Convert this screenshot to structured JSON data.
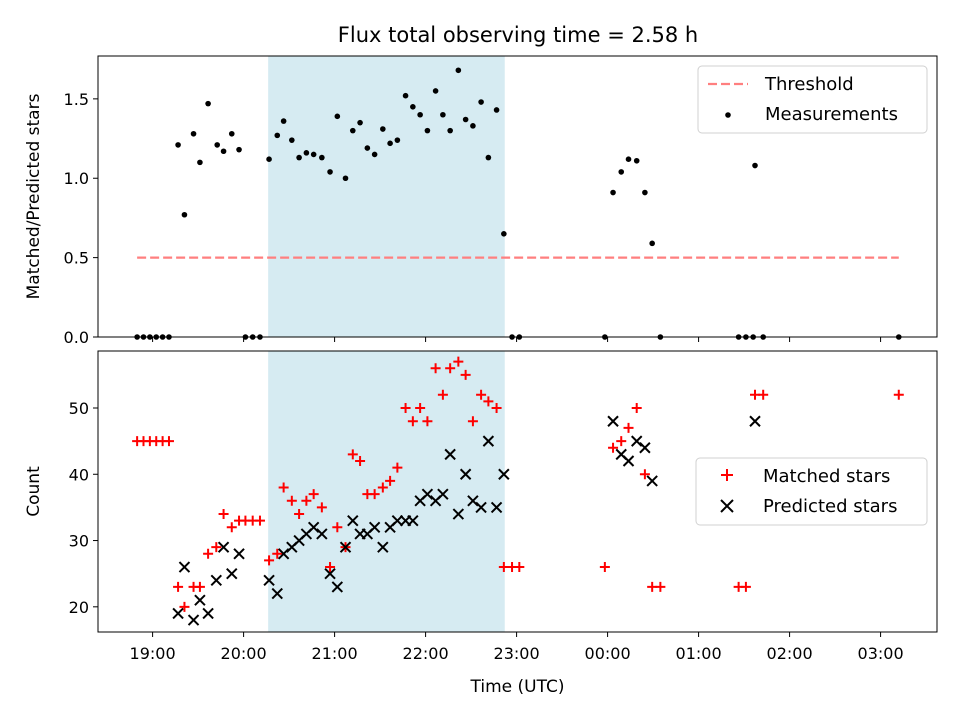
{
  "title": "Flux total observing time = 2.58 h",
  "colors": {
    "threshold": "#ff7f7f",
    "measurement": "#000000",
    "matched": "#ff0000",
    "predicted": "#000000",
    "shade": "#add8e6"
  },
  "chart_data": [
    {
      "type": "scatter",
      "panel": "top",
      "ylabel": "Matched/Predicted stars",
      "xlim": [
        18.4,
        27.62
      ],
      "ylim": [
        0,
        1.77
      ],
      "yticks": [
        0.0,
        0.5,
        1.0,
        1.5
      ],
      "ytick_labels": [
        "0.0",
        "0.5",
        "1.0",
        "1.5"
      ],
      "shaded_span": [
        20.27,
        22.87
      ],
      "threshold": {
        "name": "Threshold",
        "value": 0.5,
        "x_range": [
          18.83,
          27.2
        ]
      },
      "legend": {
        "location": "top-right",
        "entries": [
          "Threshold",
          "Measurements"
        ]
      },
      "series": [
        {
          "name": "Measurements",
          "points": [
            [
              18.83,
              0
            ],
            [
              18.9,
              0
            ],
            [
              18.97,
              0
            ],
            [
              19.04,
              0
            ],
            [
              19.11,
              0
            ],
            [
              19.18,
              0
            ],
            [
              19.28,
              1.21
            ],
            [
              19.35,
              0.77
            ],
            [
              19.45,
              1.28
            ],
            [
              19.52,
              1.1
            ],
            [
              19.61,
              1.47
            ],
            [
              19.71,
              1.21
            ],
            [
              19.78,
              1.17
            ],
            [
              19.87,
              1.28
            ],
            [
              19.95,
              1.18
            ],
            [
              20.02,
              0
            ],
            [
              20.1,
              0
            ],
            [
              20.18,
              0
            ],
            [
              20.28,
              1.12
            ],
            [
              20.37,
              1.27
            ],
            [
              20.44,
              1.36
            ],
            [
              20.53,
              1.24
            ],
            [
              20.61,
              1.13
            ],
            [
              20.69,
              1.16
            ],
            [
              20.77,
              1.15
            ],
            [
              20.86,
              1.13
            ],
            [
              20.95,
              1.04
            ],
            [
              21.03,
              1.39
            ],
            [
              21.12,
              1.0
            ],
            [
              21.2,
              1.3
            ],
            [
              21.28,
              1.35
            ],
            [
              21.36,
              1.19
            ],
            [
              21.44,
              1.15
            ],
            [
              21.53,
              1.31
            ],
            [
              21.61,
              1.22
            ],
            [
              21.69,
              1.24
            ],
            [
              21.78,
              1.52
            ],
            [
              21.86,
              1.45
            ],
            [
              21.94,
              1.4
            ],
            [
              22.02,
              1.3
            ],
            [
              22.11,
              1.55
            ],
            [
              22.19,
              1.4
            ],
            [
              22.27,
              1.3
            ],
            [
              22.36,
              1.68
            ],
            [
              22.44,
              1.37
            ],
            [
              22.52,
              1.33
            ],
            [
              22.61,
              1.48
            ],
            [
              22.69,
              1.13
            ],
            [
              22.78,
              1.43
            ],
            [
              22.86,
              0.65
            ],
            [
              22.95,
              0
            ],
            [
              23.03,
              0
            ],
            [
              23.97,
              0
            ],
            [
              24.06,
              0.91
            ],
            [
              24.15,
              1.04
            ],
            [
              24.23,
              1.12
            ],
            [
              24.32,
              1.11
            ],
            [
              24.41,
              0.91
            ],
            [
              24.49,
              0.59
            ],
            [
              24.58,
              0
            ],
            [
              25.44,
              0
            ],
            [
              25.52,
              0
            ],
            [
              25.6,
              0
            ],
            [
              25.62,
              1.08
            ],
            [
              25.71,
              0
            ],
            [
              27.2,
              0
            ]
          ]
        }
      ]
    },
    {
      "type": "scatter",
      "panel": "bottom",
      "ylabel": "Count",
      "xlabel": "Time (UTC)",
      "xlim": [
        18.4,
        27.62
      ],
      "ylim": [
        16.2,
        58.6
      ],
      "yticks": [
        20,
        30,
        40,
        50
      ],
      "ytick_labels": [
        "20",
        "30",
        "40",
        "50"
      ],
      "xticks": [
        19,
        20,
        21,
        22,
        23,
        24,
        25,
        26,
        27
      ],
      "xtick_labels": [
        "19:00",
        "20:00",
        "21:00",
        "22:00",
        "23:00",
        "00:00",
        "01:00",
        "02:00",
        "03:00"
      ],
      "shaded_span": [
        20.27,
        22.87
      ],
      "legend": {
        "location": "center-right",
        "entries": [
          "Matched stars",
          "Predicted stars"
        ]
      },
      "series": [
        {
          "name": "Matched stars",
          "marker": "plus",
          "points": [
            [
              18.83,
              45
            ],
            [
              18.9,
              45
            ],
            [
              18.97,
              45
            ],
            [
              19.04,
              45
            ],
            [
              19.11,
              45
            ],
            [
              19.18,
              45
            ],
            [
              19.28,
              23
            ],
            [
              19.35,
              20
            ],
            [
              19.45,
              23
            ],
            [
              19.52,
              23
            ],
            [
              19.61,
              28
            ],
            [
              19.7,
              29
            ],
            [
              19.78,
              34
            ],
            [
              19.87,
              32
            ],
            [
              19.95,
              33
            ],
            [
              20.02,
              33
            ],
            [
              20.1,
              33
            ],
            [
              20.18,
              33
            ],
            [
              20.28,
              27
            ],
            [
              20.37,
              28
            ],
            [
              20.44,
              38
            ],
            [
              20.53,
              36
            ],
            [
              20.61,
              34
            ],
            [
              20.69,
              36
            ],
            [
              20.77,
              37
            ],
            [
              20.86,
              35
            ],
            [
              20.95,
              26
            ],
            [
              21.03,
              32
            ],
            [
              21.12,
              29
            ],
            [
              21.2,
              43
            ],
            [
              21.28,
              42
            ],
            [
              21.36,
              37
            ],
            [
              21.44,
              37
            ],
            [
              21.53,
              38
            ],
            [
              21.61,
              39
            ],
            [
              21.69,
              41
            ],
            [
              21.78,
              50
            ],
            [
              21.86,
              48
            ],
            [
              21.94,
              50
            ],
            [
              22.02,
              48
            ],
            [
              22.11,
              56
            ],
            [
              22.19,
              52
            ],
            [
              22.27,
              56
            ],
            [
              22.36,
              57
            ],
            [
              22.44,
              55
            ],
            [
              22.52,
              48
            ],
            [
              22.61,
              52
            ],
            [
              22.69,
              51
            ],
            [
              22.78,
              50
            ],
            [
              22.86,
              26
            ],
            [
              22.95,
              26
            ],
            [
              23.03,
              26
            ],
            [
              23.97,
              26
            ],
            [
              24.06,
              44
            ],
            [
              24.15,
              45
            ],
            [
              24.23,
              47
            ],
            [
              24.32,
              50
            ],
            [
              24.41,
              40
            ],
            [
              24.49,
              23
            ],
            [
              24.58,
              23
            ],
            [
              25.44,
              23
            ],
            [
              25.52,
              23
            ],
            [
              25.62,
              52
            ],
            [
              25.71,
              52
            ],
            [
              27.2,
              52
            ]
          ]
        },
        {
          "name": "Predicted stars",
          "marker": "x",
          "points": [
            [
              19.28,
              19
            ],
            [
              19.35,
              26
            ],
            [
              19.45,
              18
            ],
            [
              19.52,
              21
            ],
            [
              19.61,
              19
            ],
            [
              19.7,
              24
            ],
            [
              19.78,
              29
            ],
            [
              19.87,
              25
            ],
            [
              19.95,
              28
            ],
            [
              20.28,
              24
            ],
            [
              20.37,
              22
            ],
            [
              20.44,
              28
            ],
            [
              20.53,
              29
            ],
            [
              20.61,
              30
            ],
            [
              20.69,
              31
            ],
            [
              20.77,
              32
            ],
            [
              20.86,
              31
            ],
            [
              20.95,
              25
            ],
            [
              21.03,
              23
            ],
            [
              21.12,
              29
            ],
            [
              21.2,
              33
            ],
            [
              21.28,
              31
            ],
            [
              21.36,
              31
            ],
            [
              21.44,
              32
            ],
            [
              21.53,
              29
            ],
            [
              21.61,
              32
            ],
            [
              21.69,
              33
            ],
            [
              21.78,
              33
            ],
            [
              21.86,
              33
            ],
            [
              21.94,
              36
            ],
            [
              22.02,
              37
            ],
            [
              22.11,
              36
            ],
            [
              22.19,
              37
            ],
            [
              22.27,
              43
            ],
            [
              22.36,
              34
            ],
            [
              22.44,
              40
            ],
            [
              22.52,
              36
            ],
            [
              22.61,
              35
            ],
            [
              22.69,
              45
            ],
            [
              22.78,
              35
            ],
            [
              22.86,
              40
            ],
            [
              24.06,
              48
            ],
            [
              24.15,
              43
            ],
            [
              24.23,
              42
            ],
            [
              24.32,
              45
            ],
            [
              24.41,
              44
            ],
            [
              24.49,
              39
            ],
            [
              25.62,
              48
            ]
          ]
        }
      ]
    }
  ]
}
